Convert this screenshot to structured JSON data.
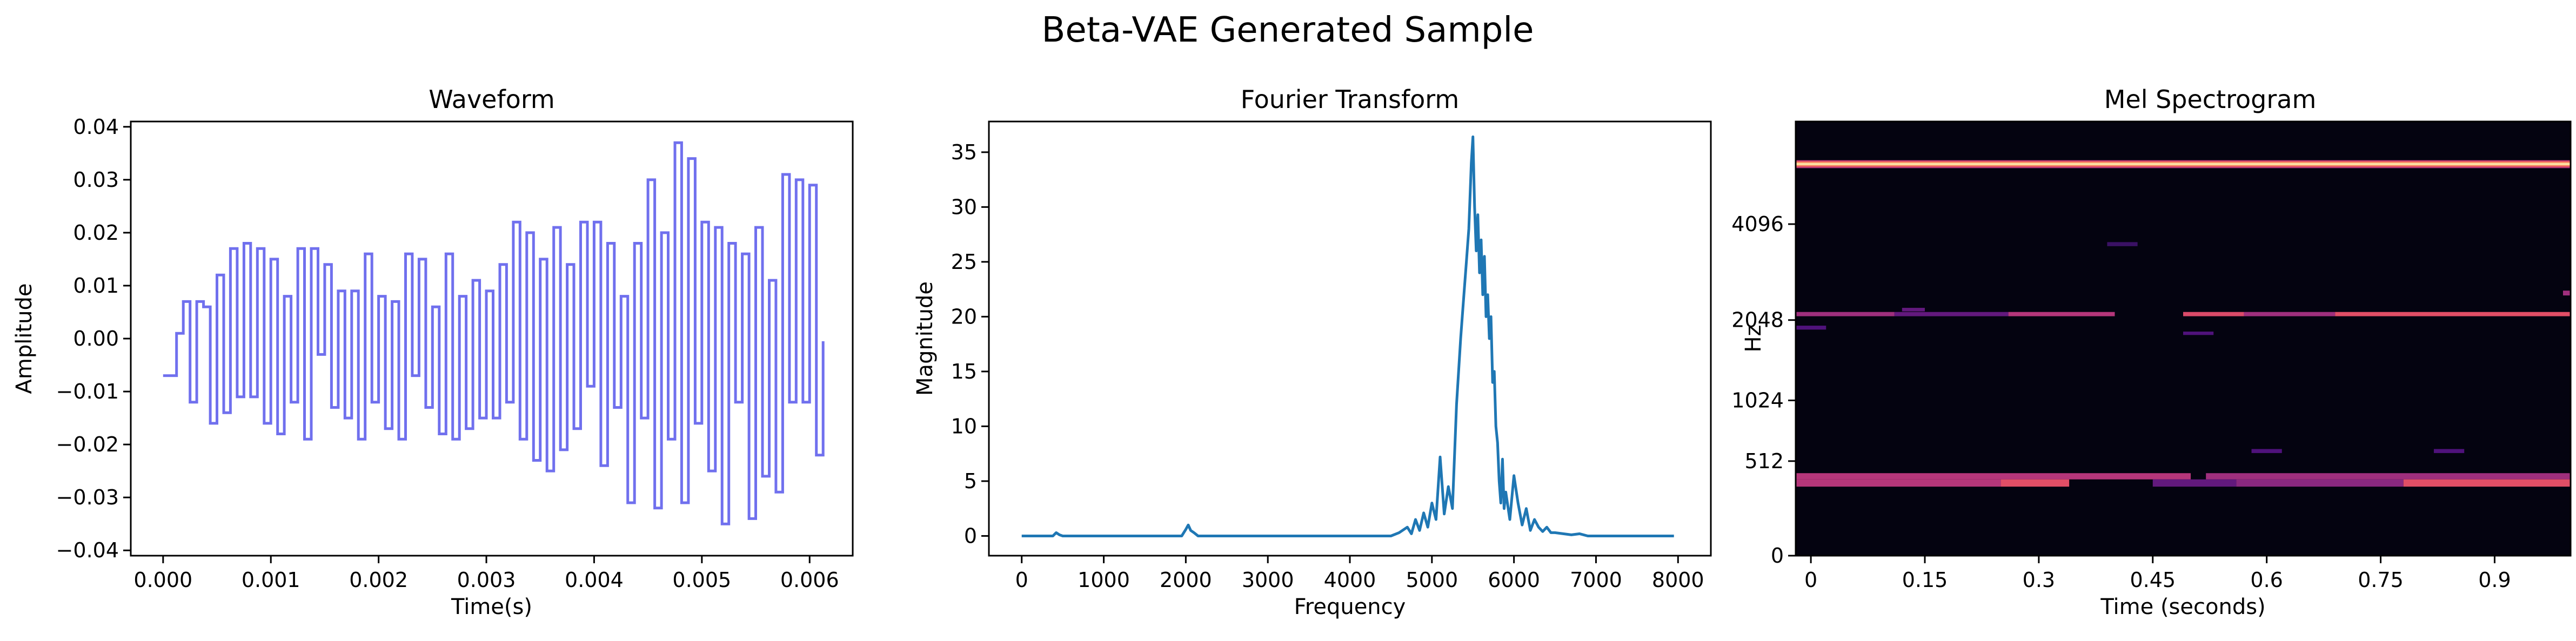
{
  "figure": {
    "title": "Beta-VAE Generated Sample"
  },
  "chart_data": [
    {
      "type": "line",
      "title": "Waveform",
      "xlabel": "Time(s)",
      "ylabel": "Amplitude",
      "xlim": [
        -0.0003,
        0.0064
      ],
      "ylim": [
        -0.041,
        0.041
      ],
      "xticks": [
        0.0,
        0.001,
        0.002,
        0.003,
        0.004,
        0.005,
        0.006
      ],
      "xtick_labels": [
        "0.000",
        "0.001",
        "0.002",
        "0.003",
        "0.004",
        "0.005",
        "0.006"
      ],
      "yticks": [
        -0.04,
        -0.03,
        -0.02,
        -0.01,
        0.0,
        0.01,
        0.02,
        0.03,
        0.04
      ],
      "ytick_labels": [
        "−0.04",
        "−0.03",
        "−0.02",
        "−0.01",
        "0.00",
        "0.01",
        "0.02",
        "0.03",
        "0.04"
      ],
      "step": "post",
      "color": "#7070ee",
      "sample_interval": 6.25e-05,
      "series": [
        {
          "values": [
            -0.007,
            -0.007,
            0.001,
            0.007,
            -0.012,
            0.007,
            0.006,
            -0.016,
            0.012,
            -0.014,
            0.017,
            -0.011,
            0.018,
            -0.011,
            0.017,
            -0.016,
            0.015,
            -0.018,
            0.008,
            -0.012,
            0.017,
            -0.019,
            0.017,
            -0.003,
            0.014,
            -0.013,
            0.009,
            -0.015,
            0.009,
            -0.019,
            0.016,
            -0.012,
            0.008,
            -0.017,
            0.007,
            -0.019,
            0.016,
            -0.007,
            0.015,
            -0.013,
            0.006,
            -0.018,
            0.016,
            -0.019,
            0.008,
            -0.017,
            0.011,
            -0.015,
            0.009,
            -0.015,
            0.014,
            -0.012,
            0.022,
            -0.019,
            0.02,
            -0.023,
            0.015,
            -0.025,
            0.021,
            -0.021,
            0.014,
            -0.017,
            0.022,
            -0.009,
            0.022,
            -0.024,
            0.018,
            -0.013,
            0.008,
            -0.031,
            0.018,
            -0.015,
            0.03,
            -0.032,
            0.02,
            -0.019,
            0.037,
            -0.031,
            0.034,
            -0.016,
            0.022,
            -0.025,
            0.021,
            -0.035,
            0.018,
            -0.012,
            0.016,
            -0.034,
            0.021,
            -0.026,
            0.011,
            -0.029,
            0.031,
            -0.012,
            0.03,
            -0.012,
            0.029,
            -0.022,
            -0.0005
          ]
        }
      ]
    },
    {
      "type": "line",
      "title": "Fourier Transform",
      "xlabel": "Frequency",
      "ylabel": "Magnitude",
      "xlim": [
        -400,
        8400
      ],
      "ylim": [
        -1.8,
        37.8
      ],
      "xticks": [
        0,
        1000,
        2000,
        3000,
        4000,
        5000,
        6000,
        7000,
        8000
      ],
      "xtick_labels": [
        "0",
        "1000",
        "2000",
        "3000",
        "4000",
        "5000",
        "6000",
        "7000",
        "8000"
      ],
      "yticks": [
        0,
        5,
        10,
        15,
        20,
        25,
        30,
        35
      ],
      "ytick_labels": [
        "0",
        "5",
        "10",
        "15",
        "20",
        "25",
        "30",
        "35"
      ],
      "color": "#1f77b4",
      "series": [
        {
          "x": [
            0,
            380,
            420,
            460,
            500,
            1950,
            2000,
            2030,
            2060,
            2100,
            2150,
            4500,
            4600,
            4700,
            4750,
            4800,
            4850,
            4900,
            4950,
            5000,
            5050,
            5100,
            5150,
            5200,
            5250,
            5300,
            5350,
            5380,
            5420,
            5450,
            5480,
            5500,
            5520,
            5540,
            5560,
            5580,
            5600,
            5620,
            5640,
            5660,
            5680,
            5700,
            5720,
            5740,
            5760,
            5780,
            5800,
            5820,
            5840,
            5860,
            5880,
            5900,
            5950,
            6000,
            6050,
            6100,
            6150,
            6200,
            6250,
            6300,
            6350,
            6400,
            6450,
            6500,
            6600,
            6700,
            6800,
            6900,
            7950
          ],
          "y": [
            0,
            0,
            0.3,
            0.1,
            0,
            0,
            0.6,
            1.0,
            0.5,
            0.3,
            0,
            0,
            0.3,
            0.8,
            0.2,
            1.5,
            0.5,
            2.1,
            0.8,
            3.0,
            1.5,
            7.2,
            2.0,
            4.5,
            2.5,
            12.0,
            18.0,
            21.0,
            25.0,
            28.0,
            34.0,
            36.4,
            30.0,
            26.0,
            29.3,
            24.0,
            27.0,
            22.0,
            25.5,
            20.0,
            22.0,
            18.0,
            20.0,
            14.0,
            15.0,
            10.0,
            8.5,
            5.0,
            3.0,
            7.0,
            2.5,
            4.0,
            1.5,
            5.5,
            3.0,
            1.0,
            2.5,
            0.5,
            1.5,
            0.8,
            0.4,
            0.8,
            0.3,
            0.3,
            0.2,
            0.1,
            0.2,
            0,
            0
          ]
        }
      ]
    },
    {
      "type": "heatmap",
      "title": "Mel Spectrogram",
      "xlabel": "Time (seconds)",
      "ylabel": "Hz",
      "xlim": [
        -0.02,
        1.0
      ],
      "xticks": [
        0,
        0.15,
        0.3,
        0.45,
        0.6,
        0.75,
        0.9
      ],
      "xtick_labels": [
        "0",
        "0.15",
        "0.3",
        "0.45",
        "0.6",
        "0.75",
        "0.9"
      ],
      "yticks": [
        0,
        512,
        1024,
        2048,
        4096
      ],
      "ytick_labels": [
        "0",
        "512",
        "1024",
        "2048",
        "4096"
      ],
      "y_scale": "mel",
      "y_max_hz": 8000,
      "colormap": "magma",
      "background": "#040310",
      "bands": [
        {
          "hz_low": 5950,
          "hz_high": 6250,
          "start": -0.02,
          "end": 1.0,
          "intensity": 1.0
        },
        {
          "hz_low": 2110,
          "hz_high": 2180,
          "start": -0.02,
          "end": 0.11,
          "intensity": 0.45
        },
        {
          "hz_low": 2110,
          "hz_high": 2180,
          "start": 0.11,
          "end": 0.26,
          "intensity": 0.3
        },
        {
          "hz_low": 2110,
          "hz_high": 2180,
          "start": 0.26,
          "end": 0.4,
          "intensity": 0.5
        },
        {
          "hz_low": 2110,
          "hz_high": 2180,
          "start": 0.49,
          "end": 0.57,
          "intensity": 0.6
        },
        {
          "hz_low": 2110,
          "hz_high": 2180,
          "start": 0.57,
          "end": 0.69,
          "intensity": 0.45
        },
        {
          "hz_low": 2110,
          "hz_high": 2180,
          "start": 0.69,
          "end": 1.0,
          "intensity": 0.62
        },
        {
          "hz_low": 2190,
          "hz_high": 2250,
          "start": 0.12,
          "end": 0.15,
          "intensity": 0.3
        },
        {
          "hz_low": 1900,
          "hz_high": 1960,
          "start": -0.02,
          "end": 0.02,
          "intensity": 0.25
        },
        {
          "hz_low": 1820,
          "hz_high": 1870,
          "start": 0.49,
          "end": 0.53,
          "intensity": 0.25
        },
        {
          "hz_low": 3520,
          "hz_high": 3620,
          "start": 0.39,
          "end": 0.43,
          "intensity": 0.2
        },
        {
          "hz_low": 2470,
          "hz_high": 2560,
          "start": 0.99,
          "end": 1.0,
          "intensity": 0.45
        },
        {
          "hz_low": 390,
          "hz_high": 430,
          "start": -0.02,
          "end": 0.5,
          "intensity": 0.5
        },
        {
          "hz_low": 390,
          "hz_high": 430,
          "start": 0.52,
          "end": 1.0,
          "intensity": 0.45
        },
        {
          "hz_low": 345,
          "hz_high": 390,
          "start": -0.02,
          "end": 0.25,
          "intensity": 0.5
        },
        {
          "hz_low": 345,
          "hz_high": 390,
          "start": 0.25,
          "end": 0.34,
          "intensity": 0.62
        },
        {
          "hz_low": 345,
          "hz_high": 390,
          "start": 0.45,
          "end": 0.56,
          "intensity": 0.3
        },
        {
          "hz_low": 345,
          "hz_high": 390,
          "start": 0.56,
          "end": 0.78,
          "intensity": 0.4
        },
        {
          "hz_low": 345,
          "hz_high": 390,
          "start": 0.78,
          "end": 1.0,
          "intensity": 0.62
        },
        {
          "hz_low": 570,
          "hz_high": 600,
          "start": 0.58,
          "end": 0.62,
          "intensity": 0.25
        },
        {
          "hz_low": 570,
          "hz_high": 600,
          "start": 0.82,
          "end": 0.86,
          "intensity": 0.25
        }
      ]
    }
  ]
}
